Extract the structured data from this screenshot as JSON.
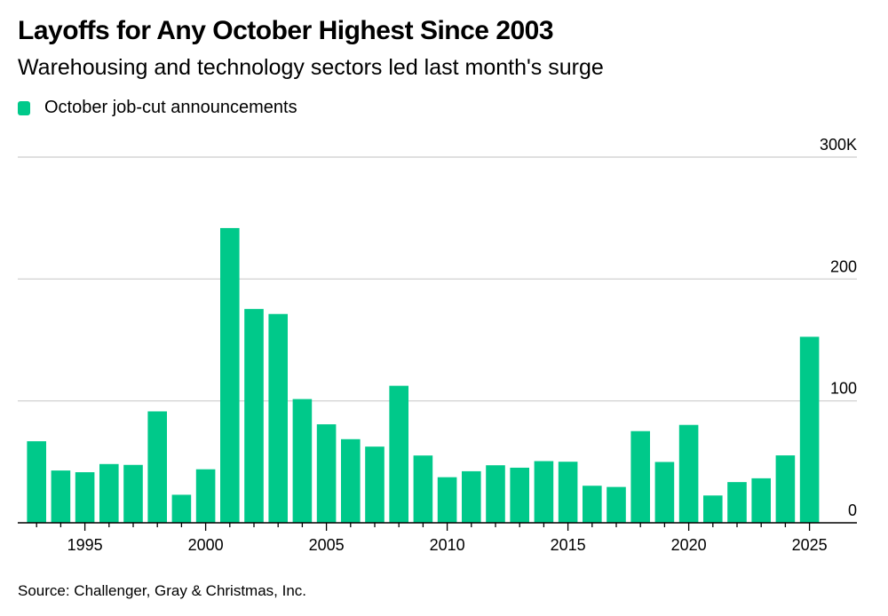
{
  "header": {
    "title": "Layoffs for Any October Highest Since 2003",
    "subtitle": "Warehousing and technology sectors led last month's surge"
  },
  "legend": {
    "label": "October job-cut announcements",
    "color": "#00c98a"
  },
  "footer": {
    "source": "Source: Challenger, Gray & Christmas, Inc."
  },
  "chart_data": {
    "type": "bar",
    "title": "Layoffs for Any October Highest Since 2003",
    "subtitle": "Warehousing and technology sectors led last month's surge",
    "xlabel": "",
    "ylabel": "",
    "units": "thousands of job cuts",
    "categories": [
      1993,
      1994,
      1995,
      1996,
      1997,
      1998,
      1999,
      2000,
      2001,
      2002,
      2003,
      2004,
      2005,
      2006,
      2007,
      2008,
      2009,
      2010,
      2011,
      2012,
      2013,
      2014,
      2015,
      2016,
      2017,
      2018,
      2019,
      2020,
      2021,
      2022,
      2023,
      2024,
      2025
    ],
    "series": [
      {
        "name": "October job-cut announcements",
        "color": "#00c98a",
        "values": [
          66.9,
          42.9,
          41.5,
          48.2,
          47.5,
          91.4,
          23.0,
          43.9,
          241.8,
          175.4,
          171.3,
          101.5,
          80.8,
          68.6,
          62.5,
          112.4,
          55.2,
          37.4,
          42.3,
          47.2,
          45.2,
          50.6,
          50.1,
          30.4,
          29.4,
          75.2,
          49.9,
          80.3,
          22.4,
          33.4,
          36.5,
          55.3,
          152.6
        ]
      }
    ],
    "ylim": [
      0,
      300
    ],
    "yticks": [
      0,
      100,
      200,
      300
    ],
    "ytick_labels": [
      "0",
      "100",
      "200",
      "300K"
    ],
    "xticks_labeled": [
      1995,
      2000,
      2005,
      2010,
      2015,
      2020,
      2025
    ],
    "xlim": [
      1992.6,
      2027.5
    ],
    "grid": true,
    "y_axis_side": "right",
    "legend_position": "top-left"
  }
}
